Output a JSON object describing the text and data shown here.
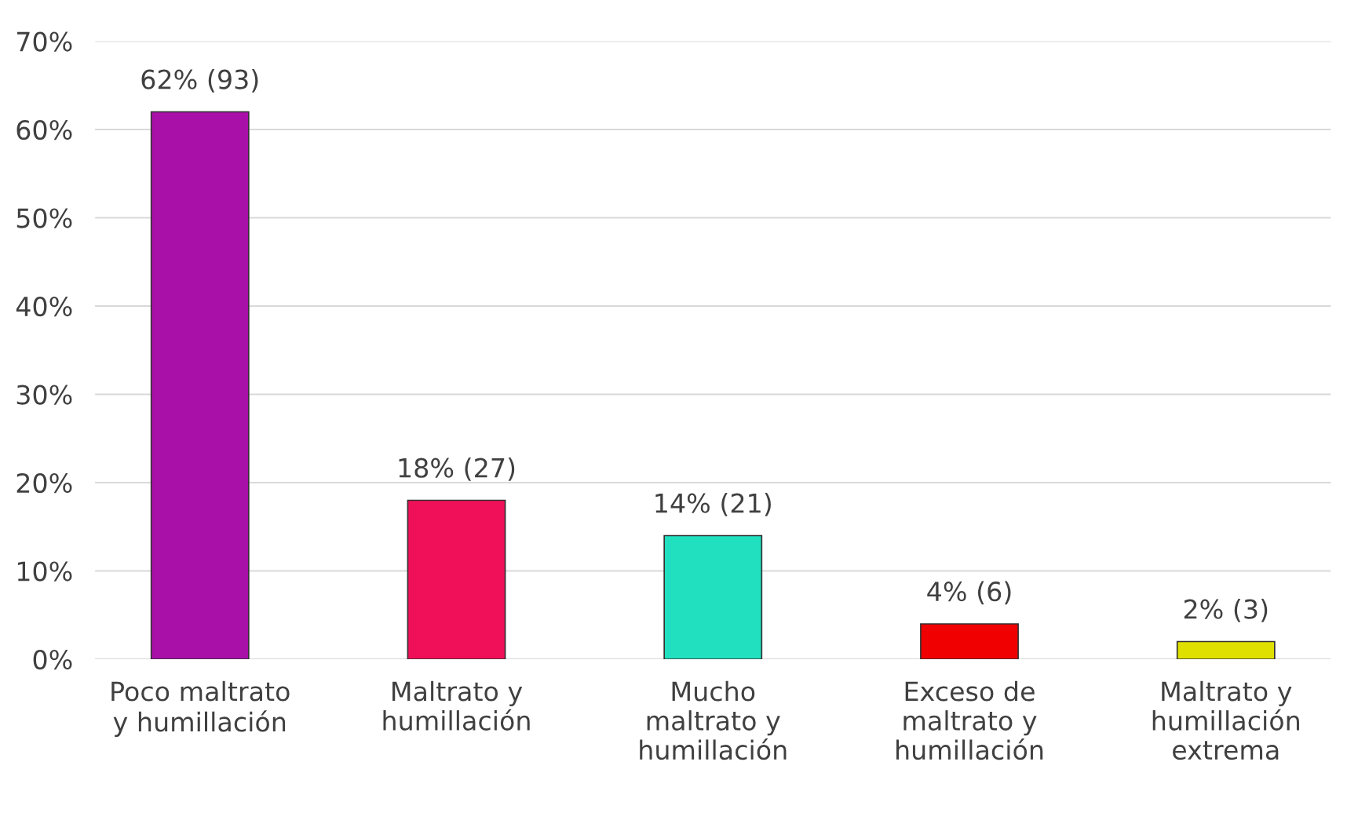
{
  "chart_data": {
    "type": "bar",
    "categories": [
      "Poco maltrato\ny humillación",
      "Maltrato y\nhumillación",
      "Mucho\nmaltrato y\nhumillación",
      "Exceso de\nmaltrato y\nhumillación",
      "Maltrato y\nhumillación\nextrema"
    ],
    "values": [
      62,
      18,
      14,
      4,
      2
    ],
    "colors": [
      "#a810a8",
      "#f0105a",
      "#20e0c0",
      "#f00000",
      "#e0e000"
    ],
    "value_labels": [
      "62% (93)",
      "18% (27)",
      "14% (21)",
      "4% (6)",
      "2% (3)"
    ],
    "ylim": [
      0,
      70
    ],
    "yticks": [
      {
        "value": 0,
        "label": "0%"
      },
      {
        "value": 10,
        "label": "10%"
      },
      {
        "value": 20,
        "label": "20%"
      },
      {
        "value": 30,
        "label": "30%"
      },
      {
        "value": 40,
        "label": "40%"
      },
      {
        "value": 50,
        "label": "50%"
      },
      {
        "value": 60,
        "label": "60%"
      },
      {
        "value": 70,
        "label": "70%"
      }
    ],
    "grid": "y"
  }
}
